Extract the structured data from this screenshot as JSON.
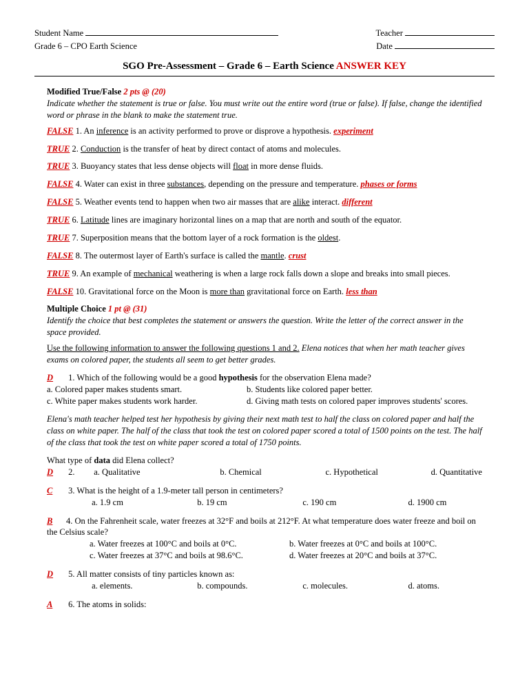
{
  "header": {
    "student_name": "Student Name",
    "teacher": "Teacher",
    "grade_line": "Grade 6 – CPO Earth Science",
    "date": "Date"
  },
  "title": {
    "main": "SGO Pre-Assessment – Grade 6 – Earth Science ",
    "key": "ANSWER KEY"
  },
  "tf_section": {
    "heading": "Modified True/False ",
    "pts": "2 pts @ (20)",
    "instr": "Indicate whether the statement is true or false.  You must write out the entire word (true or false).  If false, change the identified word or phrase in the blank to make the statement true."
  },
  "tf": [
    {
      "ans": "FALSE",
      "n": "1.",
      "pre": "  An ",
      "u": "inference",
      "post": " is an activity performed to prove or disprove a hypothesis. ",
      "corr": "experiment"
    },
    {
      "ans": "TRUE",
      "n": "2.",
      "pre": "  ",
      "u": "Conduction",
      "post": " is the transfer of heat by direct contact of atoms and molecules.",
      "corr": ""
    },
    {
      "ans": "TRUE",
      "n": "3.",
      "pre": "  Buoyancy states that less dense objects will ",
      "u": "float",
      "post": " in more dense fluids.",
      "corr": ""
    },
    {
      "ans": "FALSE",
      "n": "4.",
      "pre": "  Water can exist in three ",
      "u": "substances",
      "post": ", depending on the pressure and temperature. ",
      "corr": "phases or forms"
    },
    {
      "ans": "FALSE",
      "n": "5.",
      "pre": "  Weather events tend to happen when two air masses that are ",
      "u": "alike",
      "post": " interact. ",
      "corr": "different"
    },
    {
      "ans": "TRUE",
      "n": "6.",
      "pre": "  ",
      "u": "Latitude",
      "post": " lines are imaginary horizontal lines on a map that are north and south of the equator.",
      "corr": ""
    },
    {
      "ans": "TRUE",
      "n": "7.",
      "pre": "  Superposition means that the bottom layer of a rock formation is the ",
      "u": "oldest",
      "post": ".",
      "corr": ""
    },
    {
      "ans": "FALSE",
      "n": "8.",
      "pre": "  The outermost layer of Earth's surface is called the ",
      "u": "mantle",
      "post": ". ",
      "corr": "crust"
    },
    {
      "ans": "TRUE",
      "n": "9.",
      "pre": "  An example of ",
      "u": "mechanical",
      "post": " weathering is when a large rock falls down a slope and breaks into small pieces.",
      "corr": ""
    },
    {
      "ans": "FALSE",
      "n": "10.",
      "pre": "  Gravitational force on the Moon is ",
      "u": "more than",
      "post": " gravitational force on Earth. ",
      "corr": "less than"
    }
  ],
  "mc_section": {
    "heading": "Multiple Choice  ",
    "pts": "1 pt @ (31)",
    "instr": "Identify the choice that best completes the statement or answers the question.  Write the letter of the correct answer in the space provided."
  },
  "passage1a": "Use the following information to answer the following questions 1 and 2.",
  "passage1b": "  Elena notices that when her math teacher gives exams on colored paper, the students all seem to get better grades.",
  "q1": {
    "ans": "D",
    "num": "1.  Which of the following would be a good ",
    "bold": "hypothesis",
    "tail": " for the observation Elena made?",
    "a": "a. Colored paper makes students smart.",
    "b": "b. Students like colored paper better.",
    "c": "c. White paper makes students work harder.",
    "d": "d. Giving math tests on colored paper improves students' scores."
  },
  "passage2": "Elena's math teacher helped test her hypothesis by giving their next math test to half the class on colored paper and half the class on white paper.  The half of the class that took the test on colored paper scored a total of 1500 points on the test. The half of the class that took the test on white paper scored a total of 1750 points.",
  "q2": {
    "lead": "What type of ",
    "bold": "data",
    "tail": " did Elena collect?",
    "ans": "D",
    "num": "2.  ",
    "a": "a. Qualitative",
    "b": "b. Chemical",
    "c": "c. Hypothetical",
    "d": "d. Quantitative"
  },
  "q3": {
    "ans": "C",
    "num": "3.  What is the height of a 1.9-meter tall person in centimeters?",
    "a": "a. 1.9 cm",
    "b": "b. 19 cm",
    "c": "c. 190 cm",
    "d": "d. 1900 cm"
  },
  "q4": {
    "ans": "B",
    "num": "4.  On the Fahrenheit scale, water freezes at 32°F and boils at 212°F. At what temperature does water freeze and boil on the Celsius scale?",
    "a": "a. Water freezes at 100°C and boils at 0°C.",
    "b": "b. Water freezes at 0°C and boils at 100°C.",
    "c": "c. Water freezes at 37°C and boils at 98.6°C.",
    "d": "d. Water freezes at 20°C and boils at 37°C."
  },
  "q5": {
    "ans": "D",
    "num": "5.  All matter consists of tiny particles known as:",
    "a": "a. elements.",
    "b": "b. compounds.",
    "c": "c. molecules.",
    "d": "d. atoms."
  },
  "q6": {
    "ans": "A",
    "num": "6.  The atoms in solids:"
  }
}
